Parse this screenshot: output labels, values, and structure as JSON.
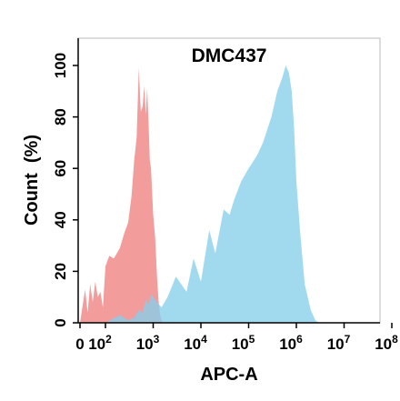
{
  "chart_data": {
    "type": "area",
    "title": "DMC437",
    "xlabel": "APC-A",
    "ylabel": "Count  (%)",
    "ylim": [
      0,
      100
    ],
    "xscale": "biexponential (log above 10^2)",
    "x_ticks": [
      {
        "value": 0,
        "base": "0",
        "exp": ""
      },
      {
        "value": 100,
        "base": "10",
        "exp": "2"
      },
      {
        "value": 1000,
        "base": "10",
        "exp": "3"
      },
      {
        "value": 10000,
        "base": "10",
        "exp": "4"
      },
      {
        "value": 100000,
        "base": "10",
        "exp": "5"
      },
      {
        "value": 1000000,
        "base": "10",
        "exp": "6"
      },
      {
        "value": 10000000,
        "base": "10",
        "exp": "7"
      },
      {
        "value": 100000000,
        "base": "10",
        "exp": "8"
      }
    ],
    "y_ticks": [
      "0",
      "20",
      "40",
      "60",
      "80",
      "100"
    ],
    "grid": false,
    "legend": "none",
    "series": [
      {
        "color": "#f08080",
        "x": [
          0,
          20,
          30,
          40,
          50,
          60,
          70,
          80,
          90,
          100,
          120,
          150,
          200,
          250,
          300,
          350,
          400,
          450,
          500,
          550,
          600,
          650,
          700,
          750,
          800,
          850,
          900,
          1000,
          1100,
          1200,
          1300,
          1400,
          1500,
          1600,
          1800
        ],
        "values": [
          0,
          13,
          4,
          15,
          8,
          16,
          10,
          12,
          6,
          22,
          26,
          25,
          29,
          35,
          39,
          49,
          63,
          72,
          99,
          82,
          84,
          92,
          81,
          91,
          78,
          63,
          60,
          42,
          33,
          18,
          8,
          3,
          1,
          0,
          0
        ]
      },
      {
        "color": "#87ceeb",
        "x": [
          100,
          200,
          300,
          400,
          500,
          600,
          700,
          800,
          900,
          1000,
          1200,
          1500,
          2000,
          3000,
          5000,
          7000,
          10000,
          15000,
          20000,
          30000,
          40000,
          50000,
          70000,
          100000,
          150000,
          200000,
          300000,
          400000,
          500000,
          600000,
          700000,
          800000,
          900000,
          1000000,
          1200000,
          1500000,
          2000000,
          2500000,
          3000000
        ],
        "values": [
          0,
          3,
          1,
          2,
          5,
          4,
          9,
          7,
          11,
          10,
          8,
          6,
          10,
          18,
          12,
          25,
          16,
          36,
          27,
          44,
          42,
          48,
          55,
          60,
          65,
          70,
          80,
          90,
          95,
          100,
          97,
          90,
          75,
          55,
          35,
          15,
          5,
          1,
          0
        ]
      }
    ]
  }
}
